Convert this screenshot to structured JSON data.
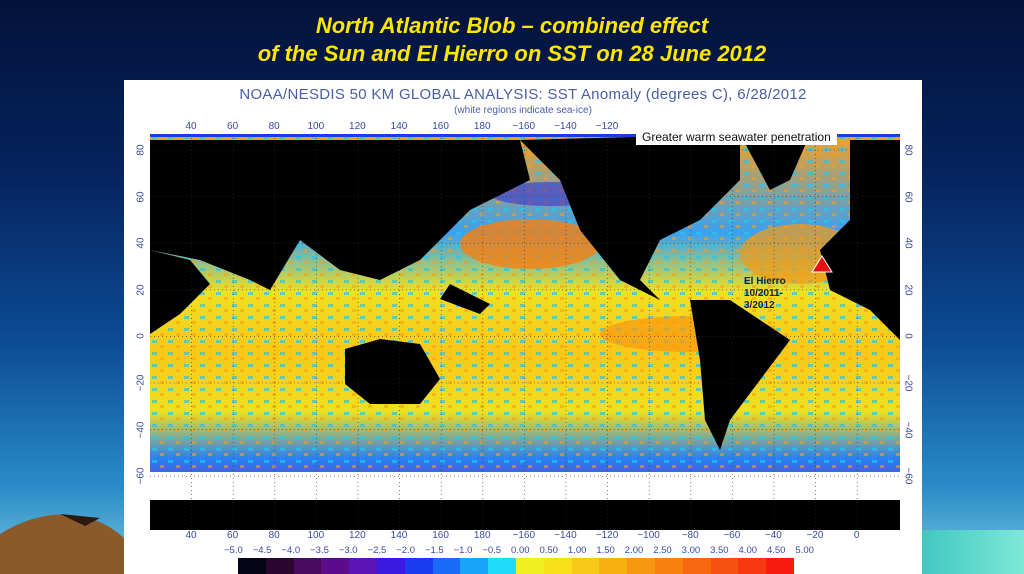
{
  "slide": {
    "title_line1": "North Atlantic Blob – combined effect",
    "title_line2": "of the Sun and El Hierro on SST on 28 June 2012"
  },
  "map": {
    "title": "NOAA/NESDIS 50 KM GLOBAL ANALYSIS: SST Anomaly (degrees C), 6/28/2012",
    "subtitle": "(white regions indicate sea-ice)",
    "top_lon_ticks": [
      "40",
      "60",
      "80",
      "100",
      "120",
      "140",
      "160",
      "180",
      "−160",
      "−140",
      "−120"
    ],
    "bottom_lon_ticks": [
      "40",
      "60",
      "80",
      "100",
      "120",
      "140",
      "160",
      "180",
      "−160",
      "−140",
      "−120",
      "−100",
      "−80",
      "−60",
      "−40",
      "−20",
      "0"
    ],
    "lat_ticks": [
      "80",
      "60",
      "40",
      "20",
      "0",
      "−20",
      "−40",
      "−60"
    ],
    "callout": "Greater warm seawater penetration",
    "marker": {
      "label_line1": "El Hierro",
      "label_line2": "10/2011-",
      "label_line3": "3/2012",
      "color": "#e81010",
      "icon": "triangle-marker"
    },
    "colorbar": {
      "labels": [
        "−5.0",
        "−4.5",
        "−4.0",
        "−3.5",
        "−3.0",
        "−2.5",
        "−2.0",
        "−1.5",
        "−1.0",
        "−0.5",
        "0.00",
        "0.50",
        "1.00",
        "1.50",
        "2.00",
        "2.50",
        "3.00",
        "3.50",
        "4.00",
        "4.50",
        "5.00"
      ],
      "colors": [
        "#05051a",
        "#2a0630",
        "#4a0a5e",
        "#5c0c8a",
        "#5a14b8",
        "#3a1ae0",
        "#1a3cf0",
        "#1a6cf8",
        "#1aa4f8",
        "#20dcf8",
        "#f0f020",
        "#f8e018",
        "#f8c818",
        "#f8b010",
        "#f89810",
        "#f88010",
        "#f86810",
        "#f85010",
        "#f83810",
        "#f81c10"
      ]
    }
  }
}
